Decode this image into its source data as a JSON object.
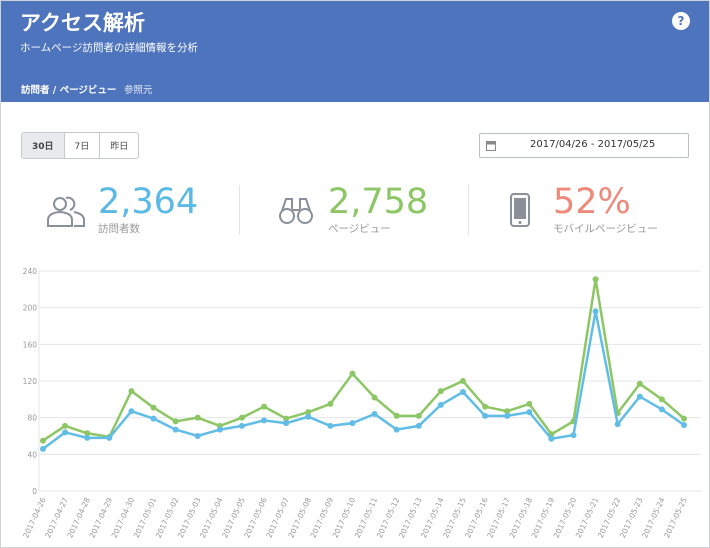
{
  "header": {
    "title": "アクセス解析",
    "subtitle": "ホームページ訪問者の詳細情報を分析",
    "help": "?"
  },
  "tabs": [
    "訪問者 / ページビュー",
    "参照元"
  ],
  "range_buttons": [
    "30日",
    "7日",
    "昨日"
  ],
  "date_range": "2017/04/26 - 2017/05/25",
  "stats": [
    {
      "value": "2,364",
      "label": "訪問者数"
    },
    {
      "value": "2,758",
      "label": "ページビュー"
    },
    {
      "value": "52%",
      "label": "モバイルページビュー"
    }
  ],
  "chart_data": {
    "type": "line",
    "categories": [
      "2017-04-26",
      "2017-04-27",
      "2017-04-28",
      "2017-04-29",
      "2017-04-30",
      "2017-05-01",
      "2017-05-02",
      "2017-05-03",
      "2017-05-04",
      "2017-05-05",
      "2017-05-06",
      "2017-05-07",
      "2017-05-08",
      "2017-05-09",
      "2017-05-10",
      "2017-05-11",
      "2017-05-12",
      "2017-05-13",
      "2017-05-14",
      "2017-05-15",
      "2017-05-16",
      "2017-05-17",
      "2017-05-18",
      "2017-05-19",
      "2017-05-20",
      "2017-05-21",
      "2017-05-22",
      "2017-05-23",
      "2017-05-24",
      "2017-05-25"
    ],
    "series": [
      {
        "color": "#8cc665",
        "values": [
          55,
          71,
          63,
          59,
          109,
          91,
          76,
          80,
          71,
          80,
          92,
          79,
          86,
          95,
          128,
          102,
          82,
          82,
          109,
          120,
          92,
          87,
          95,
          62,
          76,
          231,
          85,
          117,
          100,
          79
        ]
      },
      {
        "color": "#62bde6",
        "values": [
          46,
          64,
          58,
          58,
          87,
          79,
          67,
          60,
          67,
          71,
          77,
          74,
          81,
          71,
          74,
          84,
          67,
          71,
          94,
          108,
          82,
          82,
          86,
          57,
          61,
          196,
          73,
          103,
          89,
          72
        ]
      }
    ],
    "ylim": [
      0,
      240
    ],
    "yticks": [
      0,
      40,
      80,
      120,
      160,
      200,
      240
    ],
    "grid": true
  }
}
